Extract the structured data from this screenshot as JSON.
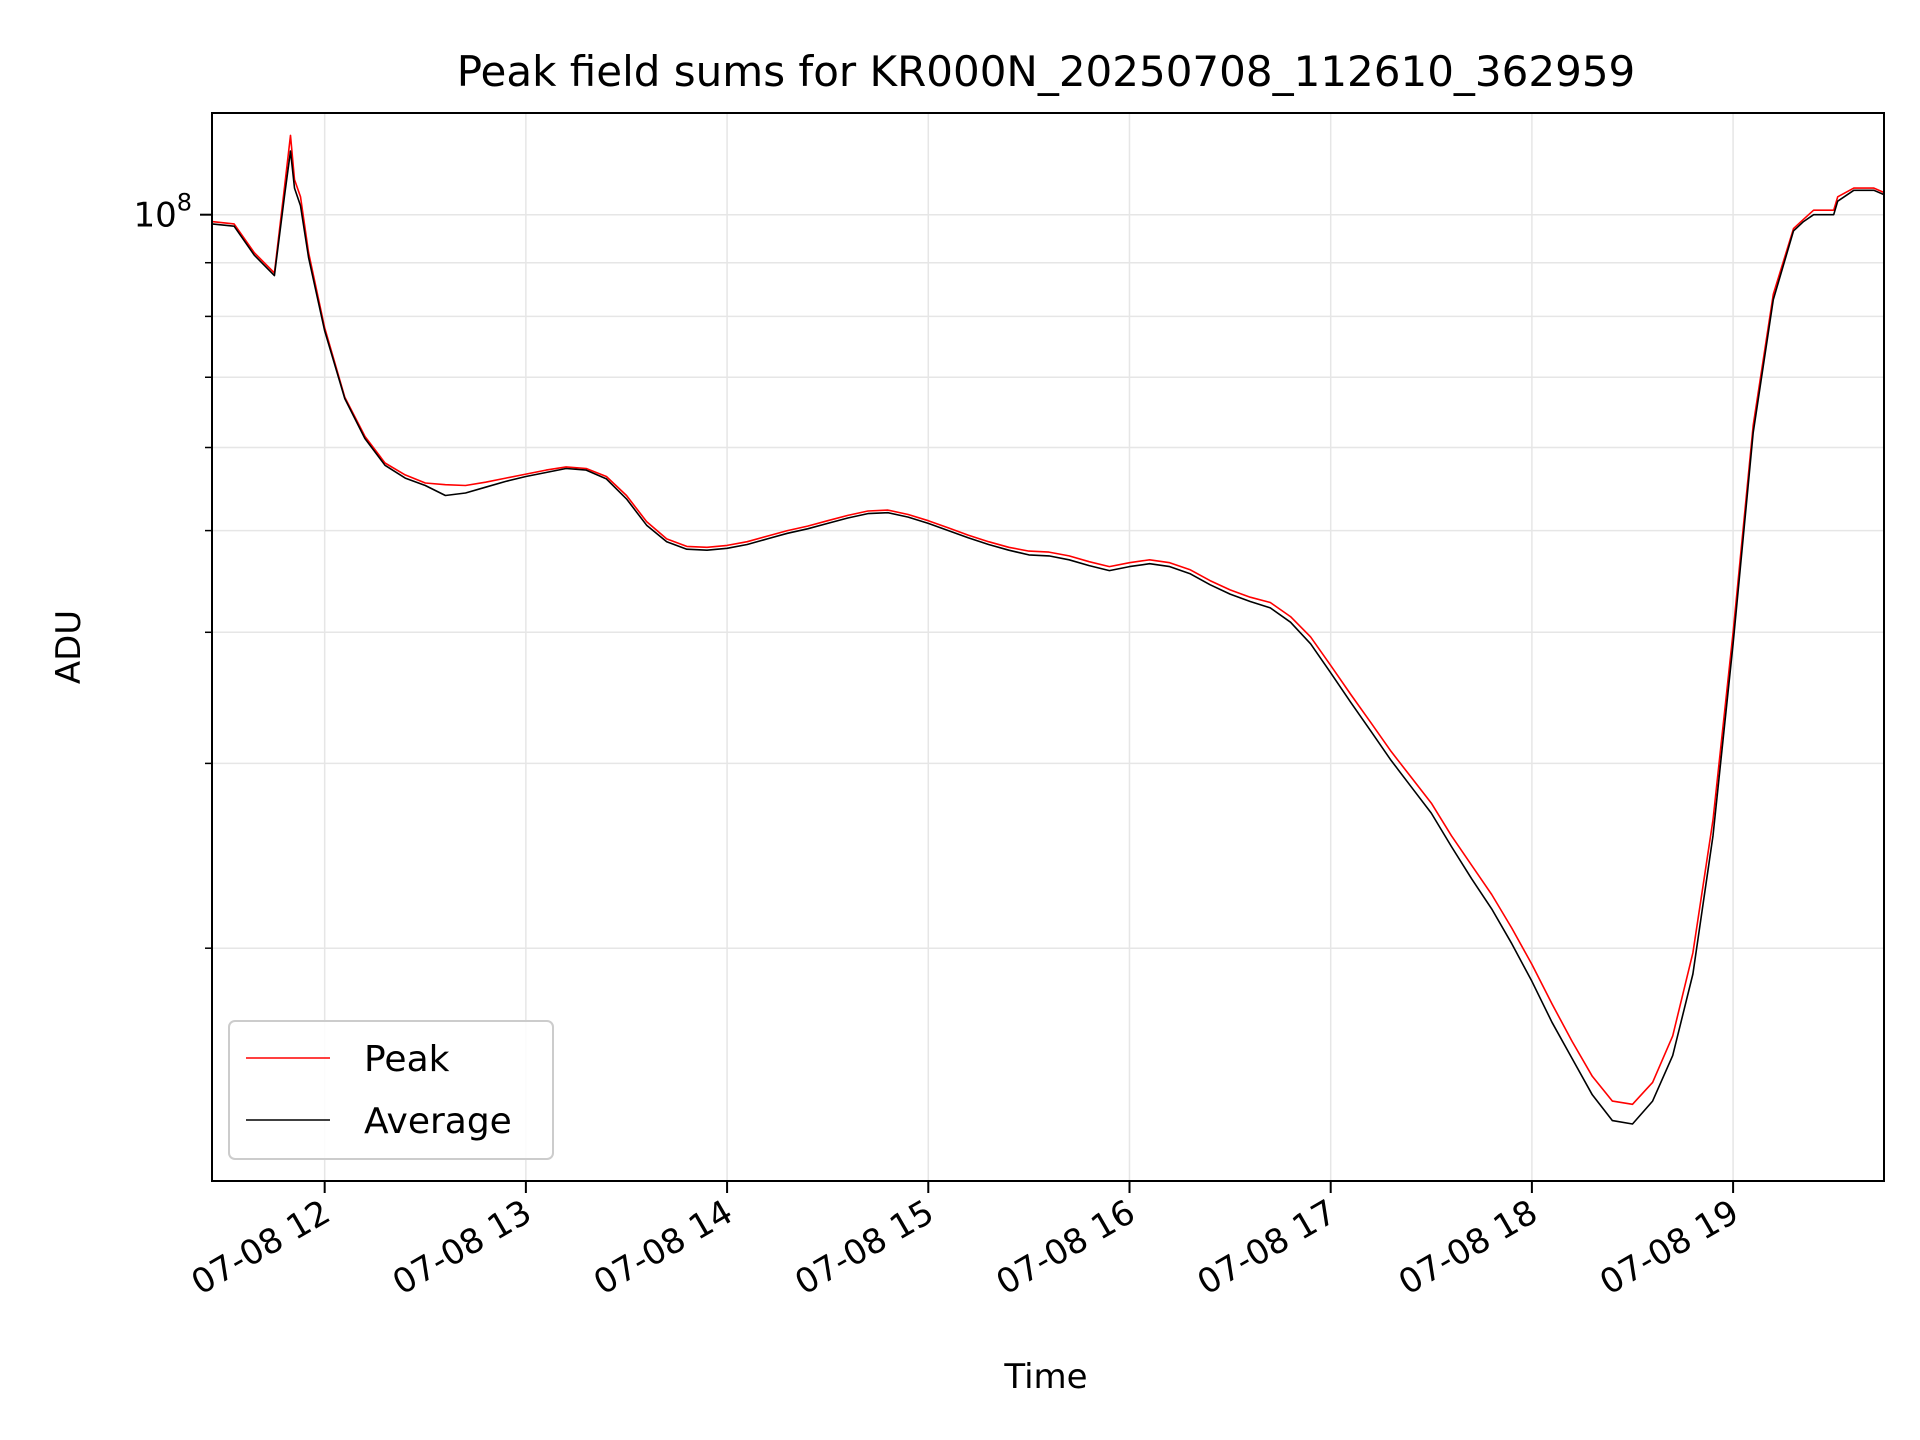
{
  "chart_data": {
    "type": "line",
    "title": "Peak field sums for KR000N_20250708_112610_362959",
    "xlabel": "Time",
    "ylabel": "ADU",
    "x_unit": "hour of 2025-07-08",
    "xlim": [
      11.44,
      19.75
    ],
    "x_ticks": [
      12,
      13,
      14,
      15,
      16,
      17,
      18,
      19
    ],
    "x_tick_labels": [
      "07-08 12",
      "07-08 13",
      "07-08 14",
      "07-08 15",
      "07-08 16",
      "07-08 17",
      "07-08 18",
      "07-08 19"
    ],
    "y_scale": "log",
    "ylim": [
      12000000,
      125000000
    ],
    "y_major_ticks": [
      100000000
    ],
    "y_major_tick_label": {
      "base": "10",
      "exponent": "8"
    },
    "y_minor_ticks": [
      20000000,
      30000000,
      40000000,
      50000000,
      60000000,
      70000000,
      80000000,
      90000000
    ],
    "grid": true,
    "legend_position": "lower-left",
    "series": [
      {
        "name": "Peak",
        "color": "#ff0000",
        "x": [
          11.44,
          11.55,
          11.65,
          11.75,
          11.8,
          11.83,
          11.85,
          11.88,
          11.92,
          12.0,
          12.1,
          12.2,
          12.3,
          12.4,
          12.5,
          12.6,
          12.7,
          12.8,
          12.9,
          13.0,
          13.1,
          13.2,
          13.3,
          13.4,
          13.5,
          13.6,
          13.7,
          13.8,
          13.9,
          14.0,
          14.1,
          14.2,
          14.3,
          14.4,
          14.5,
          14.6,
          14.7,
          14.8,
          14.9,
          15.0,
          15.1,
          15.2,
          15.3,
          15.4,
          15.5,
          15.6,
          15.7,
          15.8,
          15.9,
          16.0,
          16.1,
          16.2,
          16.3,
          16.4,
          16.5,
          16.6,
          16.7,
          16.8,
          16.9,
          17.0,
          17.1,
          17.2,
          17.3,
          17.4,
          17.5,
          17.6,
          17.7,
          17.8,
          17.9,
          18.0,
          18.1,
          18.2,
          18.3,
          18.4,
          18.5,
          18.6,
          18.7,
          18.8,
          18.9,
          19.0,
          19.1,
          19.2,
          19.3,
          19.35,
          19.4,
          19.5,
          19.52,
          19.6,
          19.7,
          19.75
        ],
        "y": [
          98500000,
          98000000,
          92000000,
          88000000,
          106000000,
          119000000,
          108000000,
          104000000,
          92000000,
          78000000,
          67000000,
          61500000,
          58000000,
          56500000,
          55500000,
          55300000,
          55200000,
          55600000,
          56100000,
          56600000,
          57100000,
          57500000,
          57300000,
          56300000,
          54000000,
          51000000,
          49100000,
          48300000,
          48200000,
          48400000,
          48800000,
          49400000,
          50000000,
          50500000,
          51100000,
          51700000,
          52200000,
          52300000,
          51800000,
          51100000,
          50300000,
          49500000,
          48800000,
          48200000,
          47800000,
          47700000,
          47300000,
          46700000,
          46200000,
          46600000,
          46900000,
          46600000,
          45900000,
          44800000,
          43900000,
          43200000,
          42700000,
          41400000,
          39600000,
          37200000,
          34900000,
          32800000,
          30800000,
          29100000,
          27500000,
          25600000,
          24000000,
          22500000,
          20900000,
          19300000,
          17700000,
          16300000,
          15100000,
          14300000,
          14200000,
          14900000,
          16500000,
          19800000,
          26500000,
          40000000,
          63000000,
          84000000,
          97000000,
          99000000,
          101000000,
          101000000,
          104000000,
          106000000,
          106000000,
          105000000
        ]
      },
      {
        "name": "Average",
        "color": "#000000",
        "x": [
          11.44,
          11.55,
          11.65,
          11.75,
          11.8,
          11.83,
          11.85,
          11.88,
          11.92,
          12.0,
          12.1,
          12.2,
          12.3,
          12.4,
          12.5,
          12.6,
          12.7,
          12.8,
          12.9,
          13.0,
          13.1,
          13.2,
          13.3,
          13.4,
          13.5,
          13.6,
          13.7,
          13.8,
          13.9,
          14.0,
          14.1,
          14.2,
          14.3,
          14.4,
          14.5,
          14.6,
          14.7,
          14.8,
          14.9,
          15.0,
          15.1,
          15.2,
          15.3,
          15.4,
          15.5,
          15.6,
          15.7,
          15.8,
          15.9,
          16.0,
          16.1,
          16.2,
          16.3,
          16.4,
          16.5,
          16.6,
          16.7,
          16.8,
          16.9,
          17.0,
          17.1,
          17.2,
          17.3,
          17.4,
          17.5,
          17.6,
          17.7,
          17.8,
          17.9,
          18.0,
          18.1,
          18.2,
          18.3,
          18.4,
          18.5,
          18.6,
          18.7,
          18.8,
          18.9,
          19.0,
          19.1,
          19.2,
          19.3,
          19.35,
          19.4,
          19.5,
          19.52,
          19.6,
          19.7,
          19.75
        ],
        "y": [
          98000000,
          97500000,
          91500000,
          87500000,
          104000000,
          115000000,
          106000000,
          102000000,
          91000000,
          77500000,
          66800000,
          61200000,
          57700000,
          56100000,
          55200000,
          54000000,
          54300000,
          55000000,
          55700000,
          56300000,
          56800000,
          57300000,
          57100000,
          56000000,
          53600000,
          50600000,
          48800000,
          48000000,
          47900000,
          48100000,
          48500000,
          49100000,
          49700000,
          50200000,
          50800000,
          51400000,
          51900000,
          52000000,
          51500000,
          50800000,
          50000000,
          49200000,
          48500000,
          47900000,
          47400000,
          47300000,
          46900000,
          46300000,
          45800000,
          46200000,
          46500000,
          46200000,
          45500000,
          44400000,
          43500000,
          42800000,
          42200000,
          40900000,
          39000000,
          36600000,
          34300000,
          32200000,
          30200000,
          28500000,
          26900000,
          25000000,
          23300000,
          21800000,
          20200000,
          18600000,
          17000000,
          15700000,
          14500000,
          13700000,
          13600000,
          14300000,
          15800000,
          18900000,
          25600000,
          39000000,
          62000000,
          83000000,
          96500000,
          98500000,
          100000000,
          100000000,
          103000000,
          105500000,
          105500000,
          104500000
        ]
      }
    ]
  }
}
